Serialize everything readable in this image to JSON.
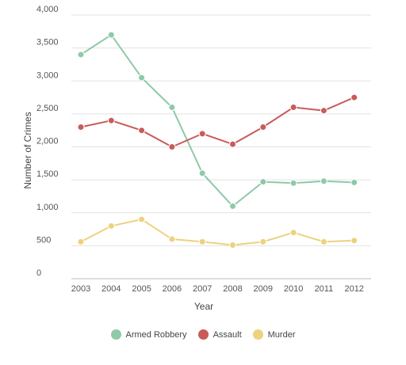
{
  "chart_data": {
    "type": "line",
    "xlabel": "Year",
    "ylabel": "Number of Crimes",
    "x": [
      "2003",
      "2004",
      "2005",
      "2006",
      "2007",
      "2008",
      "2009",
      "2010",
      "2011",
      "2012"
    ],
    "ylim": [
      0,
      4000
    ],
    "yticks": [
      "0",
      "500",
      "1,000",
      "1,500",
      "2,000",
      "2,500",
      "3,000",
      "3,500",
      "4,000"
    ],
    "grid": true,
    "legend_position": "bottom",
    "series": [
      {
        "name": "Armed Robbery",
        "color": "#8ec9a8",
        "values": [
          3400,
          3700,
          3050,
          2600,
          1600,
          1100,
          1470,
          1450,
          1480,
          1460
        ]
      },
      {
        "name": "Assault",
        "color": "#c95b5b",
        "values": [
          2300,
          2400,
          2250,
          2000,
          2200,
          2040,
          2300,
          2600,
          2550,
          2750
        ]
      },
      {
        "name": "Murder",
        "color": "#ecd27e",
        "values": [
          560,
          800,
          900,
          600,
          560,
          510,
          560,
          700,
          560,
          580
        ]
      }
    ]
  }
}
